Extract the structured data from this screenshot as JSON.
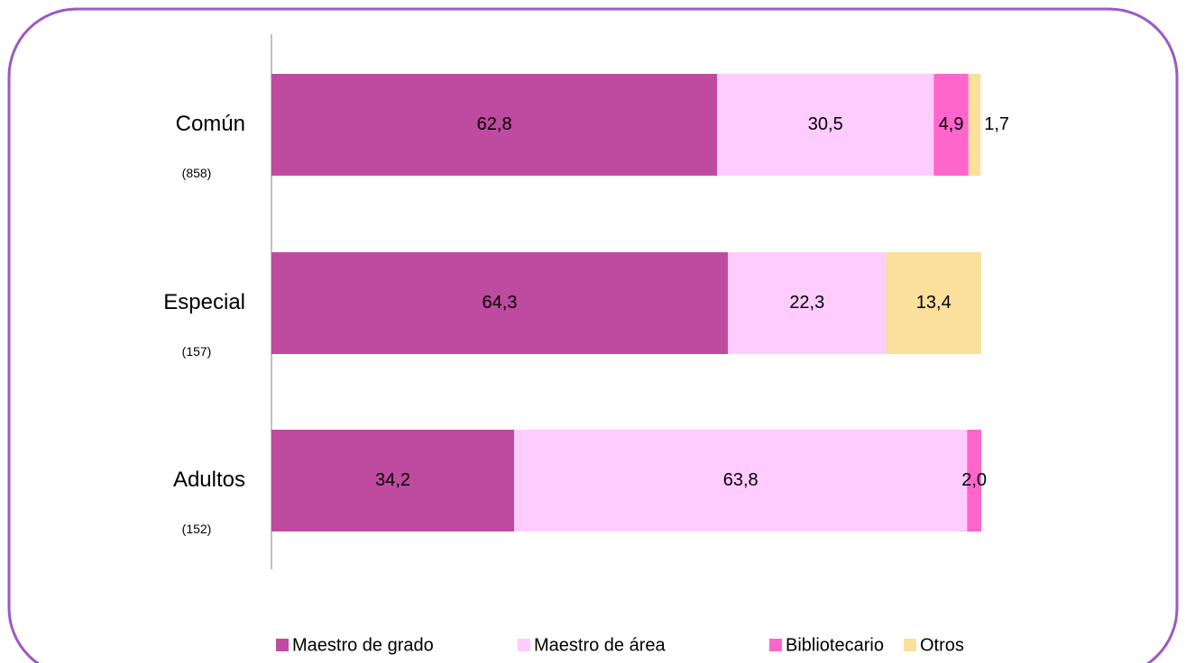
{
  "chart_data": {
    "type": "stacked_barh",
    "categories": [
      "Común",
      "Especial",
      "Adultos"
    ],
    "category_sublabels": [
      "(858)",
      "(157)",
      "(152)"
    ],
    "xlim": [
      0,
      100
    ],
    "series": [
      {
        "name": "Maestro de grado",
        "color": "#be4b9f",
        "values": [
          62.8,
          64.3,
          34.2
        ],
        "value_labels": [
          "62,8",
          "64,3",
          "34,2"
        ]
      },
      {
        "name": "Maestro de área",
        "color": "#ffccff",
        "values": [
          30.5,
          22.3,
          63.8
        ],
        "value_labels": [
          "30,5",
          "22,3",
          "63,8"
        ]
      },
      {
        "name": "Bibliotecario",
        "color": "#ff66cc",
        "values": [
          4.9,
          null,
          2.0
        ],
        "value_labels": [
          "4,9",
          null,
          "2,0"
        ]
      },
      {
        "name": "Otros",
        "color": "#fae09a",
        "values": [
          1.7,
          13.4,
          null
        ],
        "value_labels": [
          "1,7",
          "13,4",
          null
        ]
      }
    ]
  }
}
